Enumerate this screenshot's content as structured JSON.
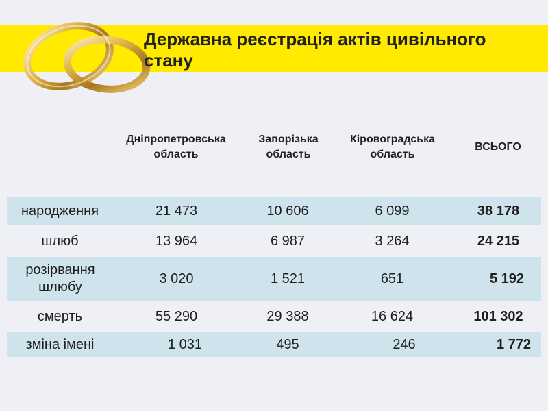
{
  "title": "Державна реєстрація актів цивільного стану",
  "columns": [
    "Дніпропетровська область",
    "Запорізька область",
    "Кіровоградська область",
    "ВСЬОГО"
  ],
  "rows": [
    {
      "label": "народження",
      "values": [
        "21 473",
        "10 606",
        "6 099",
        "38 178"
      ]
    },
    {
      "label": "шлюб",
      "values": [
        "13 964",
        "6 987",
        "3 264",
        "24 215"
      ]
    },
    {
      "label": "розірвання шлюбу",
      "values": [
        "3 020",
        "1 521",
        "651",
        "5 192"
      ]
    },
    {
      "label": "смерть",
      "values": [
        "55 290",
        "29 388",
        "16 624",
        "101 302"
      ]
    },
    {
      "label": "зміна імені",
      "values": [
        "1 031",
        "495",
        "246",
        "1 772"
      ]
    }
  ],
  "colors": {
    "title_band": "#ffea00",
    "row_shade": "#cfe3ec",
    "background": "#eef0f6"
  },
  "decoration": "wedding-rings-image"
}
